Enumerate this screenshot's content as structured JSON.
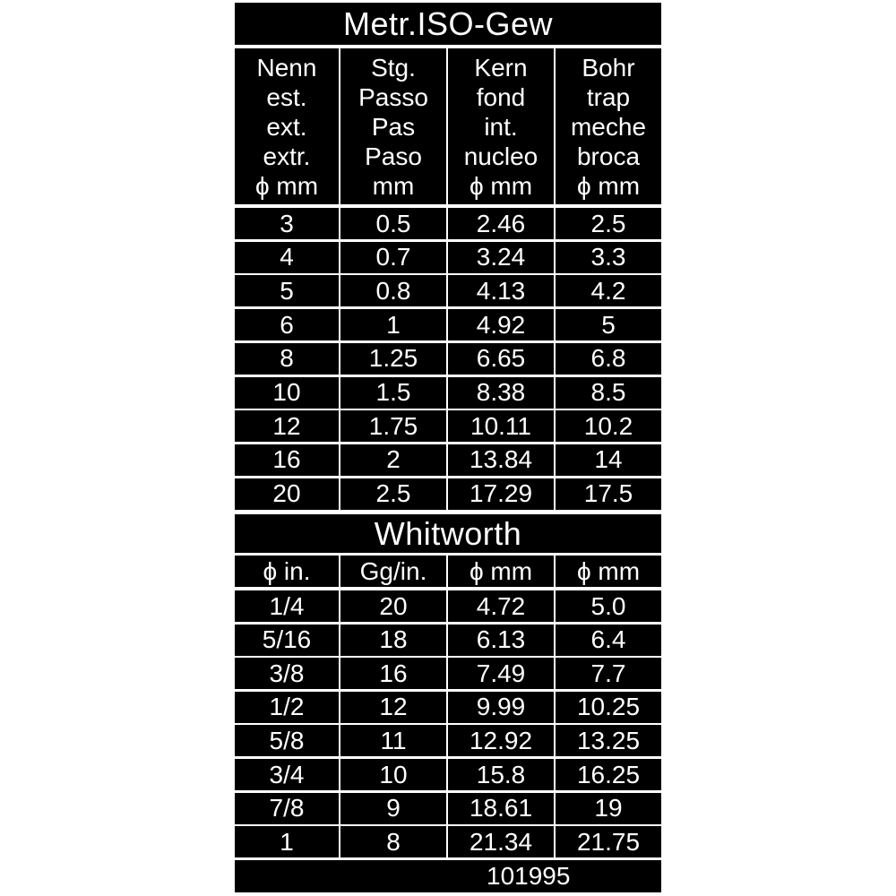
{
  "metric": {
    "title": "Metr.ISO-Gew",
    "headers": [
      "Nenn\nest.\next.\nextr.\nϕ mm",
      "Stg.\nPasso\nPas\nPaso\nmm",
      "Kern\nfond\nint.\nnucleo\nϕ mm",
      "Bohr\ntrap\nmeche\nbroca\nϕ mm"
    ],
    "rows": [
      [
        "3",
        "0.5",
        "2.46",
        "2.5"
      ],
      [
        "4",
        "0.7",
        "3.24",
        "3.3"
      ],
      [
        "5",
        "0.8",
        "4.13",
        "4.2"
      ],
      [
        "6",
        "1",
        "4.92",
        "5"
      ],
      [
        "8",
        "1.25",
        "6.65",
        "6.8"
      ],
      [
        "10",
        "1.5",
        "8.38",
        "8.5"
      ],
      [
        "12",
        "1.75",
        "10.11",
        "10.2"
      ],
      [
        "16",
        "2",
        "13.84",
        "14"
      ],
      [
        "20",
        "2.5",
        "17.29",
        "17.5"
      ]
    ]
  },
  "whitworth": {
    "title": "Whitworth",
    "headers": [
      "ϕ in.",
      "Gg/in.",
      "ϕ mm",
      "ϕ mm"
    ],
    "rows": [
      [
        "1/4",
        "20",
        "4.72",
        "5.0"
      ],
      [
        "5/16",
        "18",
        "6.13",
        "6.4"
      ],
      [
        "3/8",
        "16",
        "7.49",
        "7.7"
      ],
      [
        "1/2",
        "12",
        "9.99",
        "10.25"
      ],
      [
        "5/8",
        "11",
        "12.92",
        "13.25"
      ],
      [
        "3/4",
        "10",
        "15.8",
        "16.25"
      ],
      [
        "7/8",
        "9",
        "18.61",
        "19"
      ],
      [
        "1",
        "8",
        "21.34",
        "21.75"
      ]
    ]
  },
  "footer": {
    "code": "101995"
  },
  "colors": {
    "background": "#000000",
    "text": "#ffffff",
    "gaps": "#ffffff"
  }
}
